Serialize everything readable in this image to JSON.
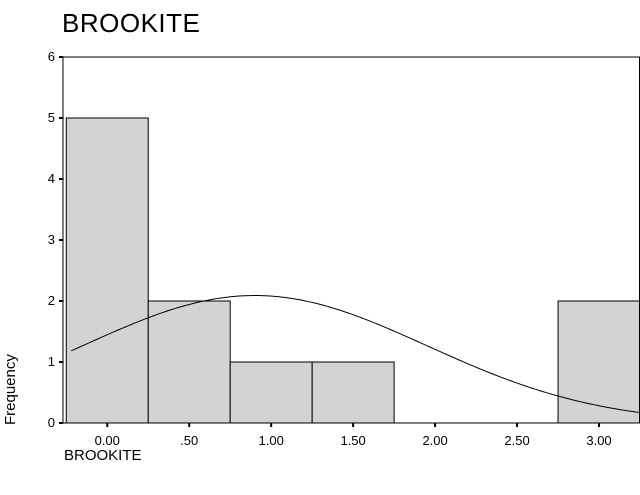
{
  "chart_data": {
    "type": "bar",
    "title": "BROOKITE",
    "xlabel": "BROOKITE",
    "ylabel": "Frequency",
    "bins": [
      {
        "start": -0.25,
        "end": 0.25,
        "count": 5
      },
      {
        "start": 0.25,
        "end": 0.75,
        "count": 2
      },
      {
        "start": 0.75,
        "end": 1.25,
        "count": 1
      },
      {
        "start": 1.25,
        "end": 1.75,
        "count": 1
      },
      {
        "start": 1.75,
        "end": 2.25,
        "count": 0
      },
      {
        "start": 2.25,
        "end": 2.75,
        "count": 0
      },
      {
        "start": 2.75,
        "end": 3.25,
        "count": 2
      }
    ],
    "x_ticks": [
      {
        "value": 0.0,
        "label": "0.00"
      },
      {
        "value": 0.5,
        "label": ".50"
      },
      {
        "value": 1.0,
        "label": "1.00"
      },
      {
        "value": 1.5,
        "label": "1.50"
      },
      {
        "value": 2.0,
        "label": "2.00"
      },
      {
        "value": 2.5,
        "label": "2.50"
      },
      {
        "value": 3.0,
        "label": "3.00"
      }
    ],
    "y_ticks": [
      0,
      1,
      2,
      3,
      4,
      5,
      6
    ],
    "xlim": [
      -0.27,
      3.25
    ],
    "ylim": [
      0,
      6
    ],
    "normal_curve": {
      "mean": 0.9,
      "sd": 1.05,
      "n": 11,
      "bin_width": 0.5
    },
    "colors": {
      "bar_fill": "#d3d3d3",
      "bar_stroke": "#000000",
      "curve": "#000000"
    },
    "grid": false
  }
}
